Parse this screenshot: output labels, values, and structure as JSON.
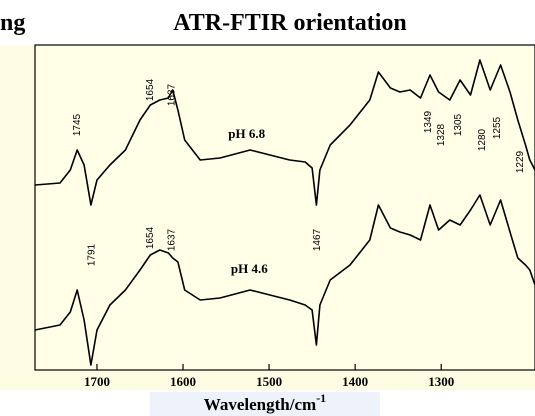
{
  "chart_data": {
    "type": "line",
    "title": "ATR-FTIR orientation",
    "title_fragment": "ng",
    "xlabel": "Wavelength/cm",
    "xlabel_sup": "-1",
    "x": [
      1772,
      1743,
      1731,
      1723,
      1715,
      1707,
      1700,
      1685,
      1667,
      1650,
      1638,
      1627,
      1617,
      1612,
      1606,
      1598,
      1580,
      1557,
      1522,
      1499,
      1476,
      1458,
      1450,
      1445,
      1441,
      1429,
      1406,
      1383,
      1373,
      1359,
      1348,
      1336,
      1324,
      1313,
      1303,
      1290,
      1278,
      1266,
      1255,
      1243,
      1231,
      1220,
      1211,
      1202,
      1197,
      1191
    ],
    "series": [
      {
        "name": "pH 6.8",
        "color": "#000000",
        "values": [
          185,
          187,
          200,
          220,
          205,
          165,
          190,
          205,
          220,
          250,
          265,
          270,
          272,
          280,
          260,
          230,
          210,
          212,
          220,
          215,
          210,
          208,
          202,
          165,
          200,
          225,
          245,
          270,
          298,
          282,
          278,
          280,
          272,
          295,
          278,
          270,
          290,
          275,
          310,
          280,
          305,
          278,
          250,
          225,
          210,
          200
        ]
      },
      {
        "name": "pH 4.6",
        "color": "#000000",
        "values": [
          40,
          45,
          58,
          80,
          50,
          5,
          40,
          65,
          80,
          100,
          115,
          120,
          117,
          112,
          108,
          80,
          70,
          72,
          80,
          75,
          70,
          65,
          60,
          25,
          65,
          90,
          105,
          130,
          165,
          142,
          138,
          135,
          130,
          165,
          140,
          150,
          145,
          160,
          175,
          145,
          170,
          138,
          112,
          105,
          100,
          85
        ]
      }
    ],
    "curve_labels": [
      {
        "text": "pH 6.8",
        "x": 1526,
        "y": 235
      },
      {
        "text": "pH 4.6",
        "x": 1523,
        "y": 100
      }
    ],
    "peak_labels": [
      {
        "text": "1745",
        "x": 1723,
        "y": 245
      },
      {
        "text": "1654",
        "x": 1638,
        "y": 280
      },
      {
        "text": "1637",
        "x": 1613,
        "y": 275
      },
      {
        "text": "1349",
        "x": 1315,
        "y": 248
      },
      {
        "text": "1328",
        "x": 1300,
        "y": 235
      },
      {
        "text": "1305",
        "x": 1280,
        "y": 245
      },
      {
        "text": "1280",
        "x": 1252,
        "y": 230
      },
      {
        "text": "1255",
        "x": 1235,
        "y": 242
      },
      {
        "text": "1229",
        "x": 1208,
        "y": 208
      },
      {
        "text": "1791",
        "x": 1706,
        "y": 115
      },
      {
        "text": "1654",
        "x": 1638,
        "y": 132
      },
      {
        "text": "1637",
        "x": 1613,
        "y": 130
      },
      {
        "text": "1467",
        "x": 1444,
        "y": 130
      }
    ],
    "xlim": [
      1772,
      1191
    ],
    "ylim": [
      0,
      325
    ],
    "xticks": [
      1700,
      1600,
      1500,
      1400,
      1300
    ]
  }
}
